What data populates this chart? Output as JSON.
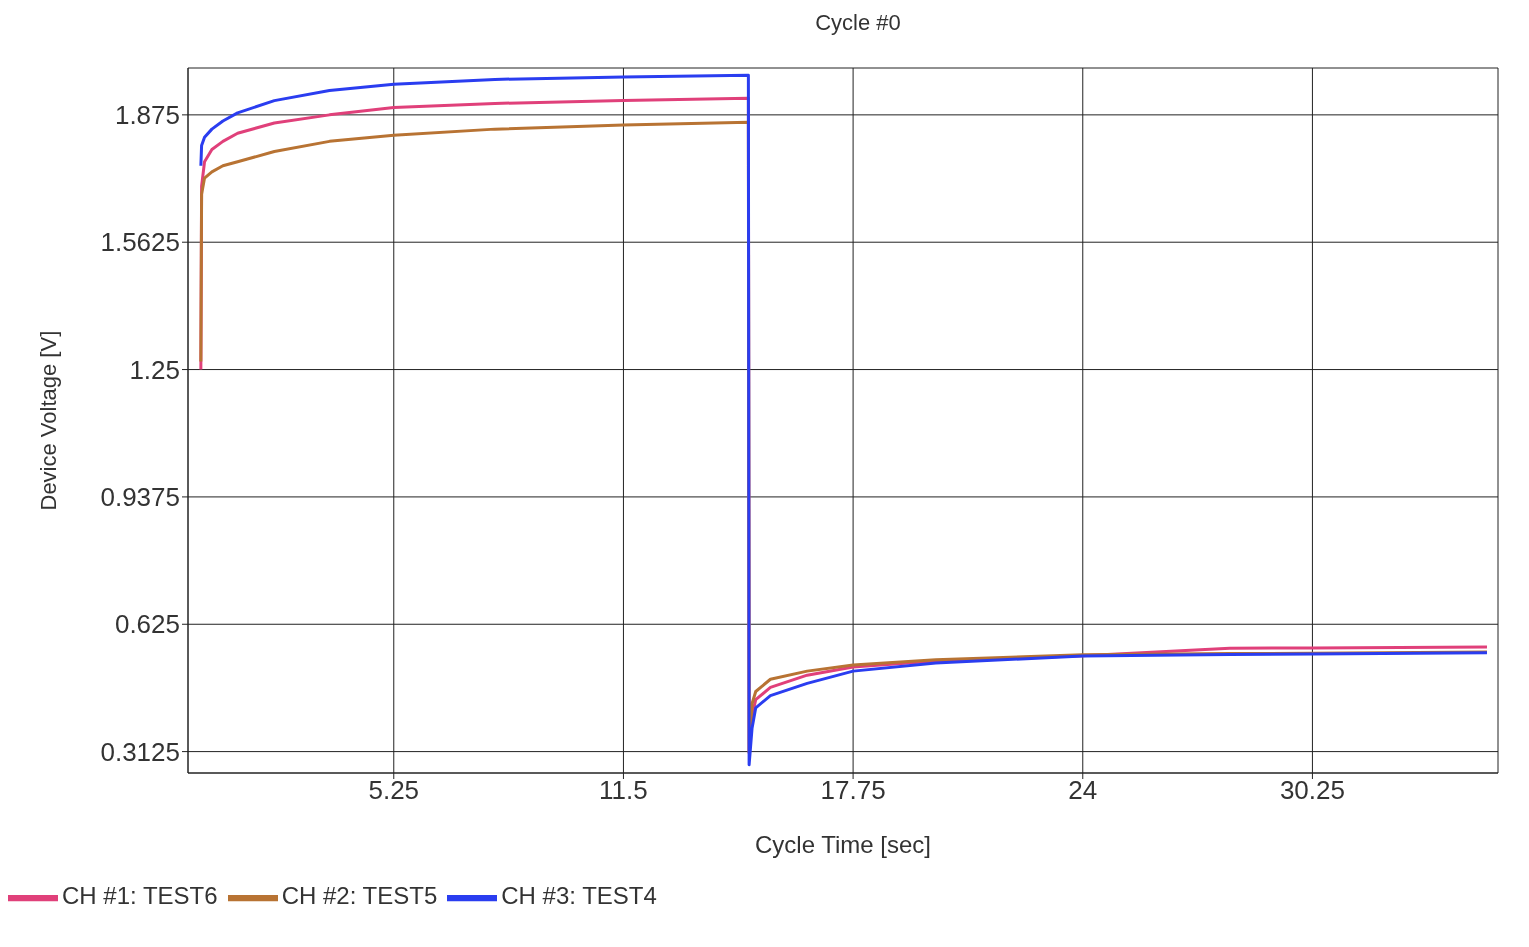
{
  "chart_data": {
    "type": "line",
    "title": "Cycle #0",
    "xlabel": "Cycle Time [sec]",
    "ylabel": "Device Voltage [V]",
    "xlim": [
      -0.35,
      35.3
    ],
    "xticks": [
      5.25,
      11.5,
      17.75,
      24,
      30.25
    ],
    "ylim": [
      0.26,
      1.99
    ],
    "yticks": [
      0.3125,
      0.625,
      0.9375,
      1.25,
      1.5625,
      1.875
    ],
    "grid": true,
    "legend": "bottom left",
    "marker": "none",
    "line_style": "solid",
    "series": [
      {
        "name": "CH #1: TEST6",
        "color": "#e0407a",
        "x": [
          0,
          0.02,
          0.1,
          0.3,
          0.6,
          1,
          2,
          3.5,
          5.25,
          8,
          11.5,
          14.9,
          14.92,
          15.0,
          15.1,
          15.5,
          16.5,
          17.75,
          20,
          24,
          28,
          30.25,
          35
        ],
        "values": [
          1.25,
          1.7,
          1.76,
          1.79,
          1.81,
          1.83,
          1.855,
          1.875,
          1.893,
          1.903,
          1.91,
          1.916,
          0.31,
          0.4,
          0.44,
          0.47,
          0.5,
          0.52,
          0.535,
          0.548,
          0.566,
          0.567,
          0.569
        ]
      },
      {
        "name": "CH #2: TEST5",
        "color": "#b87333",
        "x": [
          0,
          0.02,
          0.1,
          0.3,
          0.6,
          1,
          2,
          3.5,
          5.25,
          8,
          11.5,
          14.9,
          14.92,
          15.0,
          15.1,
          15.5,
          16.5,
          17.75,
          20,
          24,
          28,
          30.25,
          35
        ],
        "values": [
          1.27,
          1.68,
          1.72,
          1.735,
          1.75,
          1.76,
          1.785,
          1.81,
          1.825,
          1.84,
          1.85,
          1.857,
          0.31,
          0.43,
          0.46,
          0.49,
          0.51,
          0.525,
          0.538,
          0.55,
          0.553,
          0.554,
          0.557
        ]
      },
      {
        "name": "CH #3: TEST4",
        "color": "#2a3df0",
        "x": [
          0,
          0.02,
          0.1,
          0.3,
          0.6,
          1,
          2,
          3.5,
          5.25,
          8,
          11.5,
          14.9,
          14.92,
          15.0,
          15.1,
          15.5,
          16.5,
          17.75,
          20,
          24,
          28,
          30.25,
          35
        ],
        "values": [
          1.75,
          1.8,
          1.82,
          1.84,
          1.86,
          1.88,
          1.91,
          1.935,
          1.95,
          1.962,
          1.968,
          1.972,
          0.28,
          0.37,
          0.42,
          0.45,
          0.48,
          0.51,
          0.53,
          0.547,
          0.551,
          0.552,
          0.555
        ]
      }
    ]
  }
}
